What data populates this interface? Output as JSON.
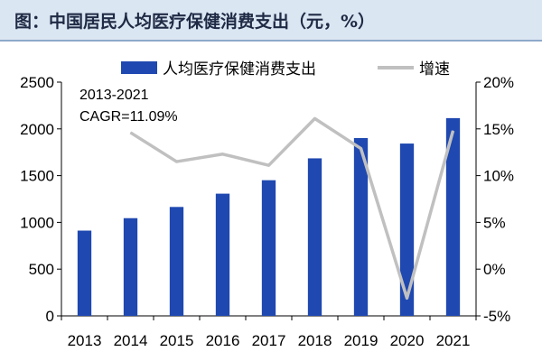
{
  "title": "图：中国居民人均医疗保健消费支出（元，%）",
  "chart_data": {
    "type": "bar+line",
    "categories": [
      "2013",
      "2014",
      "2015",
      "2016",
      "2017",
      "2018",
      "2019",
      "2020",
      "2021"
    ],
    "series": [
      {
        "name": "人均医疗保健消费支出",
        "type": "bar",
        "axis": "left",
        "color": "#1f48b0",
        "values": [
          912,
          1045,
          1165,
          1307,
          1451,
          1685,
          1902,
          1843,
          2115
        ]
      },
      {
        "name": "增速",
        "type": "line",
        "axis": "right",
        "color": "#c0c0c0",
        "values": [
          null,
          14.6,
          11.5,
          12.3,
          11.1,
          16.1,
          12.9,
          -3.1,
          14.8
        ]
      }
    ],
    "left_axis": {
      "min": 0,
      "max": 2500,
      "ticks": [
        0,
        500,
        1000,
        1500,
        2000,
        2500
      ],
      "tick_labels": [
        "0",
        "500",
        "1000",
        "1500",
        "2000",
        "2500"
      ]
    },
    "right_axis": {
      "min": -5,
      "max": 20,
      "ticks": [
        -5,
        0,
        5,
        10,
        15,
        20
      ],
      "tick_labels": [
        "-5%",
        "0%",
        "5%",
        "10%",
        "15%",
        "20%"
      ]
    },
    "annotation": {
      "line1": "2013-2021",
      "line2": "CAGR=11.09%"
    },
    "legend_position": "top"
  }
}
